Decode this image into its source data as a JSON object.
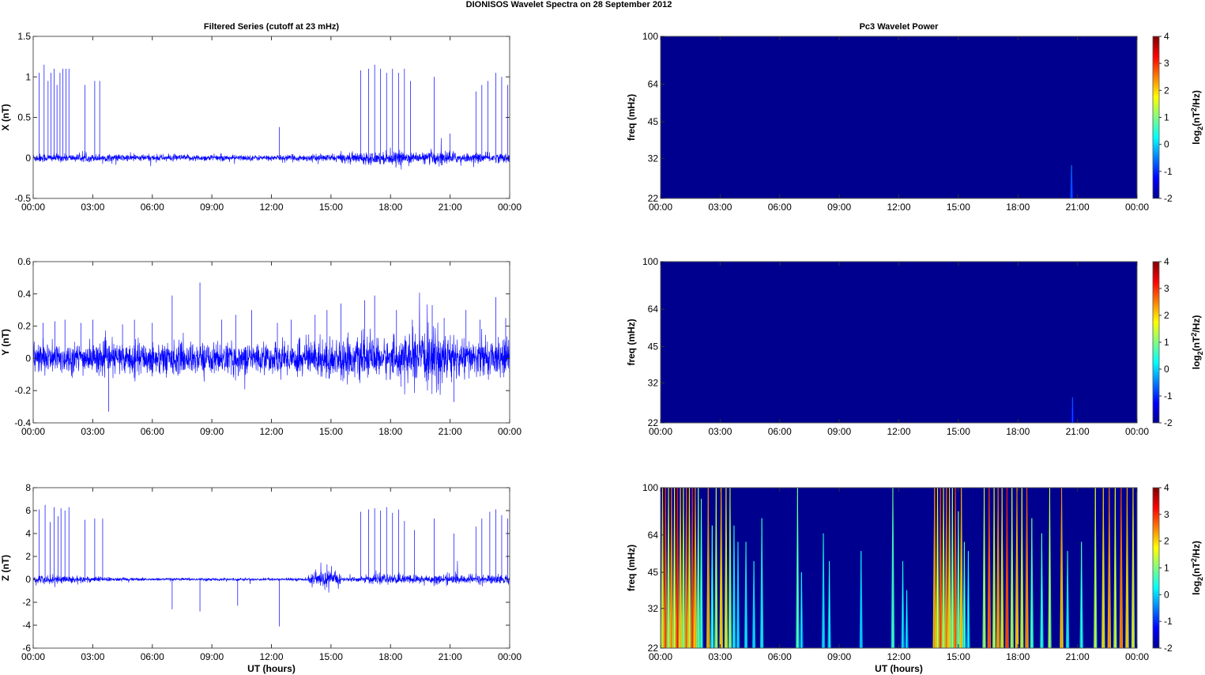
{
  "figure_title": "DIONISOS Wavelet Spectra on 28 September 2012",
  "colors": {
    "trace": "#0000ff",
    "background_power": "#00008f",
    "colormap": [
      "#00008f",
      "#0000ff",
      "#007fff",
      "#00ffff",
      "#7fff7f",
      "#ffff00",
      "#ff7f00",
      "#ff0000",
      "#7f0000"
    ]
  },
  "chart_data": [
    {
      "type": "line",
      "id": "x",
      "title": "Filtered Series (cutoff at 23 mHz)",
      "xlabel": "",
      "ylabel": "X (nT)",
      "xlim": [
        0,
        24
      ],
      "ylim": [
        -0.5,
        1.5
      ],
      "xticks": [
        "00:00",
        "03:00",
        "06:00",
        "09:00",
        "12:00",
        "15:00",
        "18:00",
        "21:00",
        "00:00"
      ],
      "yticks": [
        -0.5,
        0,
        0.5,
        1,
        1.5
      ],
      "noise_level": [
        [
          0,
          0.05
        ],
        [
          1.9,
          0.04
        ],
        [
          4,
          0.04
        ],
        [
          12,
          0.03
        ],
        [
          15,
          0.04
        ],
        [
          16.4,
          0.06
        ],
        [
          18.5,
          0.07
        ],
        [
          19.5,
          0.05
        ],
        [
          20.5,
          0.09
        ],
        [
          21.5,
          0.05
        ],
        [
          24,
          0.05
        ]
      ],
      "spikes": [
        [
          0.3,
          1.05
        ],
        [
          0.55,
          1.15
        ],
        [
          0.75,
          0.95
        ],
        [
          0.9,
          1.05
        ],
        [
          1.05,
          1.1
        ],
        [
          1.2,
          0.9
        ],
        [
          1.35,
          1.05
        ],
        [
          1.5,
          1.1
        ],
        [
          1.65,
          1.1
        ],
        [
          1.8,
          1.1
        ],
        [
          2.6,
          0.9
        ],
        [
          3.1,
          0.95
        ],
        [
          3.35,
          0.95
        ],
        [
          12.4,
          0.38
        ],
        [
          16.5,
          1.08
        ],
        [
          16.9,
          1.1
        ],
        [
          17.2,
          1.15
        ],
        [
          17.5,
          1.1
        ],
        [
          17.8,
          1.05
        ],
        [
          18.1,
          1.1
        ],
        [
          18.4,
          1.05
        ],
        [
          18.7,
          1.1
        ],
        [
          19.0,
          0.95
        ],
        [
          20.2,
          1.0
        ],
        [
          21.0,
          0.3
        ],
        [
          22.3,
          0.82
        ],
        [
          22.6,
          0.9
        ],
        [
          22.9,
          0.95
        ],
        [
          23.3,
          1.05
        ],
        [
          23.6,
          1.0
        ],
        [
          23.9,
          0.9
        ]
      ]
    },
    {
      "type": "heatmap",
      "id": "x-power",
      "title": "Pc3 Wavelet Power",
      "xlabel": "",
      "ylabel": "freq (mHz)",
      "xlim": [
        0,
        24
      ],
      "ylim": [
        22,
        100
      ],
      "scale": "log",
      "xticks": [
        "00:00",
        "03:00",
        "06:00",
        "09:00",
        "12:00",
        "15:00",
        "18:00",
        "21:00",
        "00:00"
      ],
      "yticks": [
        22,
        32,
        45,
        64,
        100
      ],
      "colorbar": {
        "label_main": "log",
        "label_sub": "2",
        "label_paren": "(nT",
        "label_sup": "2",
        "label_tail": "/Hz)",
        "range": [
          -2,
          4
        ],
        "ticks": [
          -2,
          -1,
          0,
          1,
          2,
          3,
          4
        ]
      },
      "streaks": [
        [
          20.7,
          30,
          -0.5
        ]
      ]
    },
    {
      "type": "line",
      "id": "y",
      "title": "",
      "xlabel": "",
      "ylabel": "Y (nT)",
      "xlim": [
        0,
        24
      ],
      "ylim": [
        -0.4,
        0.6
      ],
      "xticks": [
        "00:00",
        "03:00",
        "06:00",
        "09:00",
        "12:00",
        "15:00",
        "18:00",
        "21:00",
        "00:00"
      ],
      "yticks": [
        -0.4,
        -0.2,
        0,
        0.2,
        0.4,
        0.6
      ],
      "noise_level": [
        [
          0,
          0.09
        ],
        [
          3,
          0.08
        ],
        [
          6,
          0.09
        ],
        [
          12,
          0.08
        ],
        [
          14,
          0.1
        ],
        [
          15,
          0.11
        ],
        [
          18,
          0.1
        ],
        [
          20.5,
          0.16
        ],
        [
          21.5,
          0.1
        ],
        [
          24,
          0.1
        ]
      ],
      "spikes": [
        [
          0.5,
          0.22
        ],
        [
          1.1,
          0.23
        ],
        [
          1.6,
          0.24
        ],
        [
          2.4,
          0.22
        ],
        [
          3.0,
          0.24
        ],
        [
          3.8,
          -0.33
        ],
        [
          4.5,
          0.21
        ],
        [
          5.1,
          0.24
        ],
        [
          6.0,
          0.22
        ],
        [
          7.0,
          0.39
        ],
        [
          8.4,
          0.47
        ],
        [
          9.5,
          0.24
        ],
        [
          10.2,
          0.27
        ],
        [
          11.0,
          0.3
        ],
        [
          12.3,
          0.22
        ],
        [
          13.0,
          0.24
        ],
        [
          14.2,
          0.27
        ],
        [
          14.8,
          0.3
        ],
        [
          15.5,
          0.34
        ],
        [
          16.7,
          0.36
        ],
        [
          17.2,
          0.39
        ],
        [
          18.3,
          0.3
        ],
        [
          19.1,
          0.24
        ],
        [
          20.1,
          0.33
        ],
        [
          20.7,
          0.25
        ],
        [
          21.2,
          -0.27
        ],
        [
          21.8,
          0.3
        ],
        [
          22.5,
          0.24
        ],
        [
          23.3,
          0.38
        ],
        [
          23.8,
          0.25
        ]
      ]
    },
    {
      "type": "heatmap",
      "id": "y-power",
      "title": "",
      "xlabel": "",
      "ylabel": "freq (mHz)",
      "xlim": [
        0,
        24
      ],
      "ylim": [
        22,
        100
      ],
      "scale": "log",
      "xticks": [
        "00:00",
        "03:00",
        "06:00",
        "09:00",
        "12:00",
        "15:00",
        "18:00",
        "21:00",
        "00:00"
      ],
      "yticks": [
        22,
        32,
        45,
        64,
        100
      ],
      "colorbar": {
        "label_main": "log",
        "label_sub": "2",
        "label_paren": "(nT",
        "label_sup": "2",
        "label_tail": "/Hz)",
        "range": [
          -2,
          4
        ],
        "ticks": [
          -2,
          -1,
          0,
          1,
          2,
          3,
          4
        ]
      },
      "streaks": [
        [
          20.75,
          28,
          -0.7
        ]
      ]
    },
    {
      "type": "line",
      "id": "z",
      "title": "",
      "xlabel": "UT (hours)",
      "ylabel": "Z (nT)",
      "xlim": [
        0,
        24
      ],
      "ylim": [
        -6,
        8
      ],
      "xticks": [
        "00:00",
        "03:00",
        "06:00",
        "09:00",
        "12:00",
        "15:00",
        "18:00",
        "21:00",
        "00:00"
      ],
      "yticks": [
        -6,
        -4,
        -2,
        0,
        2,
        4,
        6,
        8
      ],
      "noise_level": [
        [
          0,
          0.35
        ],
        [
          2,
          0.3
        ],
        [
          4,
          0.15
        ],
        [
          6,
          0.1
        ],
        [
          13.8,
          0.1
        ],
        [
          14.0,
          0.6
        ],
        [
          15.4,
          0.6
        ],
        [
          15.6,
          0.15
        ],
        [
          16.5,
          0.2
        ],
        [
          17,
          0.35
        ],
        [
          24,
          0.35
        ]
      ],
      "spikes": [
        [
          0.3,
          6.1
        ],
        [
          0.6,
          6.5
        ],
        [
          0.85,
          5.0
        ],
        [
          1.05,
          6.3
        ],
        [
          1.25,
          5.5
        ],
        [
          1.4,
          6.2
        ],
        [
          1.6,
          6.0
        ],
        [
          1.8,
          6.3
        ],
        [
          2.6,
          5.2
        ],
        [
          3.1,
          5.3
        ],
        [
          3.5,
          5.3
        ],
        [
          7.0,
          -2.6
        ],
        [
          8.4,
          -2.8
        ],
        [
          10.3,
          -2.3
        ],
        [
          12.4,
          -4.1
        ],
        [
          14.8,
          1.3
        ],
        [
          16.5,
          5.9
        ],
        [
          16.9,
          6.1
        ],
        [
          17.2,
          6.2
        ],
        [
          17.5,
          6.0
        ],
        [
          17.8,
          6.3
        ],
        [
          18.1,
          5.8
        ],
        [
          18.4,
          6.1
        ],
        [
          18.7,
          5.1
        ],
        [
          19.2,
          4.3
        ],
        [
          20.2,
          5.3
        ],
        [
          21.2,
          4.0
        ],
        [
          22.3,
          4.6
        ],
        [
          22.6,
          5.3
        ],
        [
          23.0,
          5.9
        ],
        [
          23.3,
          6.1
        ],
        [
          23.6,
          5.6
        ],
        [
          23.9,
          5.3
        ]
      ]
    },
    {
      "type": "heatmap",
      "id": "z-power",
      "title": "",
      "xlabel": "UT (hours)",
      "ylabel": "freq (mHz)",
      "xlim": [
        0,
        24
      ],
      "ylim": [
        22,
        100
      ],
      "scale": "log",
      "xticks": [
        "00:00",
        "03:00",
        "06:00",
        "09:00",
        "12:00",
        "15:00",
        "18:00",
        "21:00",
        "00:00"
      ],
      "yticks": [
        22,
        32,
        45,
        64,
        100
      ],
      "colorbar": {
        "label_main": "log",
        "label_sub": "2",
        "label_paren": "(nT",
        "label_sup": "2",
        "label_tail": "/Hz)",
        "range": [
          -2,
          4
        ],
        "ticks": [
          -2,
          -1,
          0,
          1,
          2,
          3,
          4
        ]
      },
      "streaks": [
        [
          0.1,
          100,
          2.0
        ],
        [
          0.25,
          100,
          3.0
        ],
        [
          0.4,
          100,
          1.6
        ],
        [
          0.55,
          100,
          2.6
        ],
        [
          0.7,
          100,
          1.8
        ],
        [
          0.85,
          100,
          3.2
        ],
        [
          1.0,
          100,
          2.2
        ],
        [
          1.15,
          100,
          1.5
        ],
        [
          1.3,
          100,
          2.8
        ],
        [
          1.45,
          100,
          1.9
        ],
        [
          1.6,
          100,
          3.1
        ],
        [
          1.75,
          100,
          2.4
        ],
        [
          1.9,
          100,
          1.2
        ],
        [
          2.05,
          90,
          0.9
        ],
        [
          2.4,
          100,
          2.5
        ],
        [
          2.6,
          70,
          0.8
        ],
        [
          2.8,
          100,
          1.5
        ],
        [
          3.05,
          100,
          2.3
        ],
        [
          3.3,
          100,
          1.9
        ],
        [
          3.5,
          100,
          1.4
        ],
        [
          3.7,
          70,
          0.6
        ],
        [
          3.9,
          60,
          0.4
        ],
        [
          4.3,
          60,
          0.5
        ],
        [
          4.7,
          50,
          0.4
        ],
        [
          5.1,
          75,
          0.6
        ],
        [
          6.9,
          100,
          1.0
        ],
        [
          7.1,
          45,
          0.3
        ],
        [
          8.2,
          65,
          0.4
        ],
        [
          8.5,
          50,
          0.5
        ],
        [
          10.1,
          55,
          0.3
        ],
        [
          11.7,
          100,
          0.9
        ],
        [
          12.2,
          50,
          0.4
        ],
        [
          12.4,
          38,
          0.3
        ],
        [
          13.8,
          100,
          2.5
        ],
        [
          13.95,
          100,
          1.8
        ],
        [
          14.1,
          100,
          3.0
        ],
        [
          14.25,
          100,
          1.6
        ],
        [
          14.4,
          100,
          2.7
        ],
        [
          14.55,
          100,
          2.1
        ],
        [
          14.7,
          100,
          1.4
        ],
        [
          14.85,
          100,
          2.9
        ],
        [
          15.0,
          80,
          1.2
        ],
        [
          15.15,
          100,
          2.3
        ],
        [
          15.3,
          60,
          0.8
        ],
        [
          15.5,
          55,
          0.5
        ],
        [
          16.3,
          100,
          1.5
        ],
        [
          16.55,
          100,
          3.0
        ],
        [
          16.8,
          100,
          1.7
        ],
        [
          17.0,
          100,
          2.6
        ],
        [
          17.2,
          100,
          2.0
        ],
        [
          17.45,
          100,
          3.1
        ],
        [
          17.7,
          100,
          1.6
        ],
        [
          17.95,
          100,
          2.4
        ],
        [
          18.2,
          100,
          1.8
        ],
        [
          18.45,
          100,
          2.7
        ],
        [
          18.7,
          75,
          1.0
        ],
        [
          19.2,
          65,
          0.8
        ],
        [
          19.6,
          100,
          1.5
        ],
        [
          20.2,
          100,
          2.4
        ],
        [
          20.5,
          55,
          0.6
        ],
        [
          21.2,
          60,
          0.7
        ],
        [
          21.9,
          100,
          1.6
        ],
        [
          22.3,
          100,
          2.1
        ],
        [
          22.6,
          100,
          2.6
        ],
        [
          22.9,
          100,
          1.7
        ],
        [
          23.2,
          100,
          2.8
        ],
        [
          23.5,
          100,
          2.2
        ],
        [
          23.8,
          100,
          1.9
        ]
      ]
    }
  ]
}
